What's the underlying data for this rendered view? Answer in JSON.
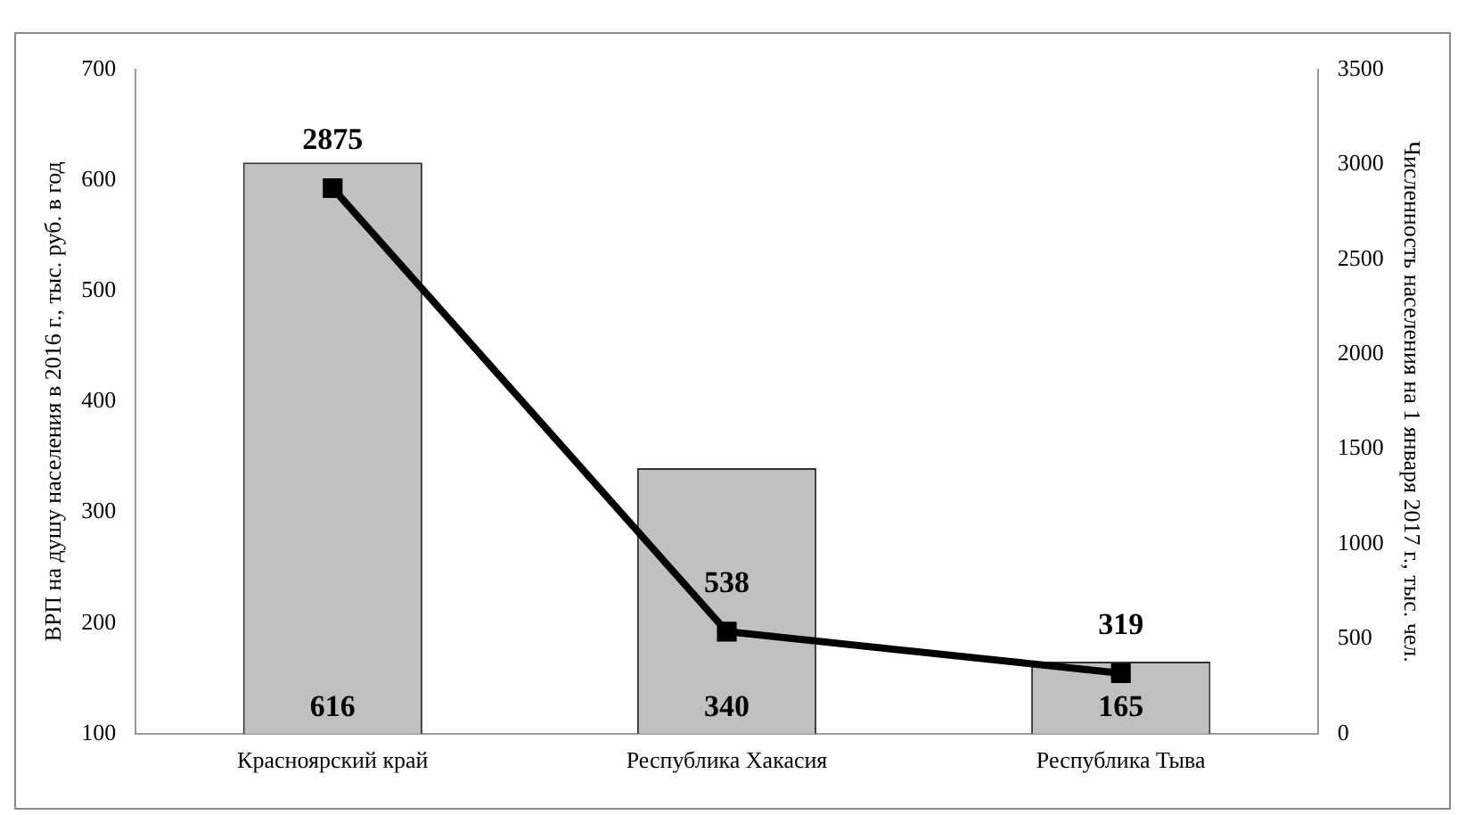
{
  "chart_data": {
    "type": "bar",
    "categories": [
      "Красноярский край",
      "Республика Хакасия",
      "Республика Тыва"
    ],
    "series": [
      {
        "color": "#c0c0c0",
        "values": [
          616,
          340,
          165
        ]
      },
      {
        "type": "line",
        "axis": "y2",
        "color": "#000000",
        "values": [
          2875,
          538,
          319
        ]
      }
    ],
    "ylabel": "ВРП на душу населения в 2016 г., тыс. руб. в год",
    "y2label": "Численность населения на 1 января 2017 г., тыс. чел.",
    "ylim": [
      100,
      700
    ],
    "yticks": [
      100,
      200,
      300,
      400,
      500,
      600,
      700
    ],
    "y2lim": [
      0,
      3500
    ],
    "y2ticks": [
      0,
      500,
      1000,
      1500,
      2000,
      2500,
      3000,
      3500
    ],
    "grid": false,
    "legend": false,
    "marker": "square",
    "line_style": "solid",
    "data_labels": true
  }
}
